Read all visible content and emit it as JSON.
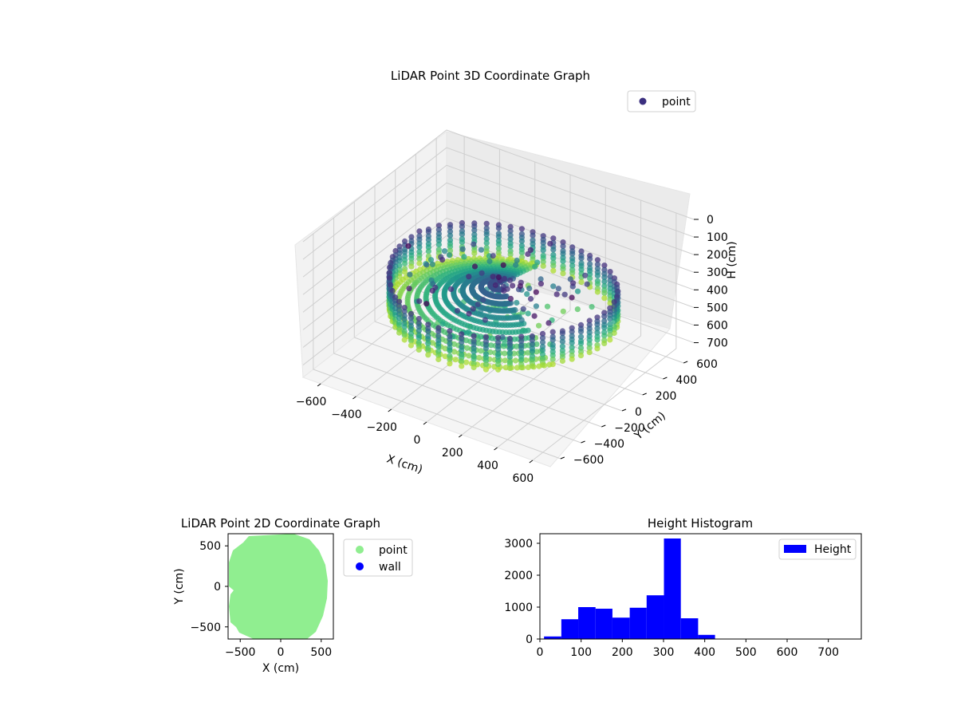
{
  "chart_data": [
    {
      "type": "scatter",
      "title": "LiDAR Point 3D Coordinate Graph",
      "xlabel": "X (cm)",
      "ylabel": "Y (cm)",
      "zlabel": "H (cm)",
      "xlim": [
        -700,
        700
      ],
      "ylim": [
        -700,
        700
      ],
      "zlim": [
        770,
        0
      ],
      "x_ticks": [
        -600,
        -400,
        -200,
        0,
        200,
        400,
        600
      ],
      "y_ticks": [
        -600,
        -400,
        -200,
        0,
        200,
        400,
        600
      ],
      "z_ticks": [
        0,
        100,
        200,
        300,
        400,
        500,
        600,
        700
      ],
      "z_inverted": true,
      "colormap": "viridis",
      "legend": [
        "point"
      ],
      "legend_position": "top-right",
      "grid": true,
      "colors": {
        "legend_marker": "#3b2f7f"
      }
    },
    {
      "type": "scatter",
      "title": "LiDAR Point 2D Coordinate Graph",
      "xlabel": "X (cm)",
      "ylabel": "Y (cm)",
      "xlim": [
        -650,
        650
      ],
      "ylim": [
        -650,
        650
      ],
      "x_ticks": [
        -500,
        0,
        500
      ],
      "y_ticks": [
        -500,
        0,
        500
      ],
      "series": [
        {
          "name": "point",
          "color": "#90ee90"
        },
        {
          "name": "wall",
          "color": "#0000ff"
        }
      ],
      "legend_position": "outside-right"
    },
    {
      "type": "bar",
      "title": "Height Histogram",
      "bin_edges": [
        10,
        52,
        93,
        135,
        176,
        218,
        259,
        301,
        342,
        384,
        425
      ],
      "values": [
        80,
        620,
        1000,
        950,
        670,
        980,
        1370,
        3150,
        650,
        130
      ],
      "xlim": [
        0,
        780
      ],
      "ylim": [
        0,
        3300
      ],
      "x_ticks": [
        0,
        100,
        200,
        300,
        400,
        500,
        600,
        700
      ],
      "y_ticks": [
        0,
        1000,
        2000,
        3000
      ],
      "series": [
        {
          "name": "Height",
          "color": "#0000ff"
        }
      ],
      "legend_position": "top-right"
    }
  ]
}
